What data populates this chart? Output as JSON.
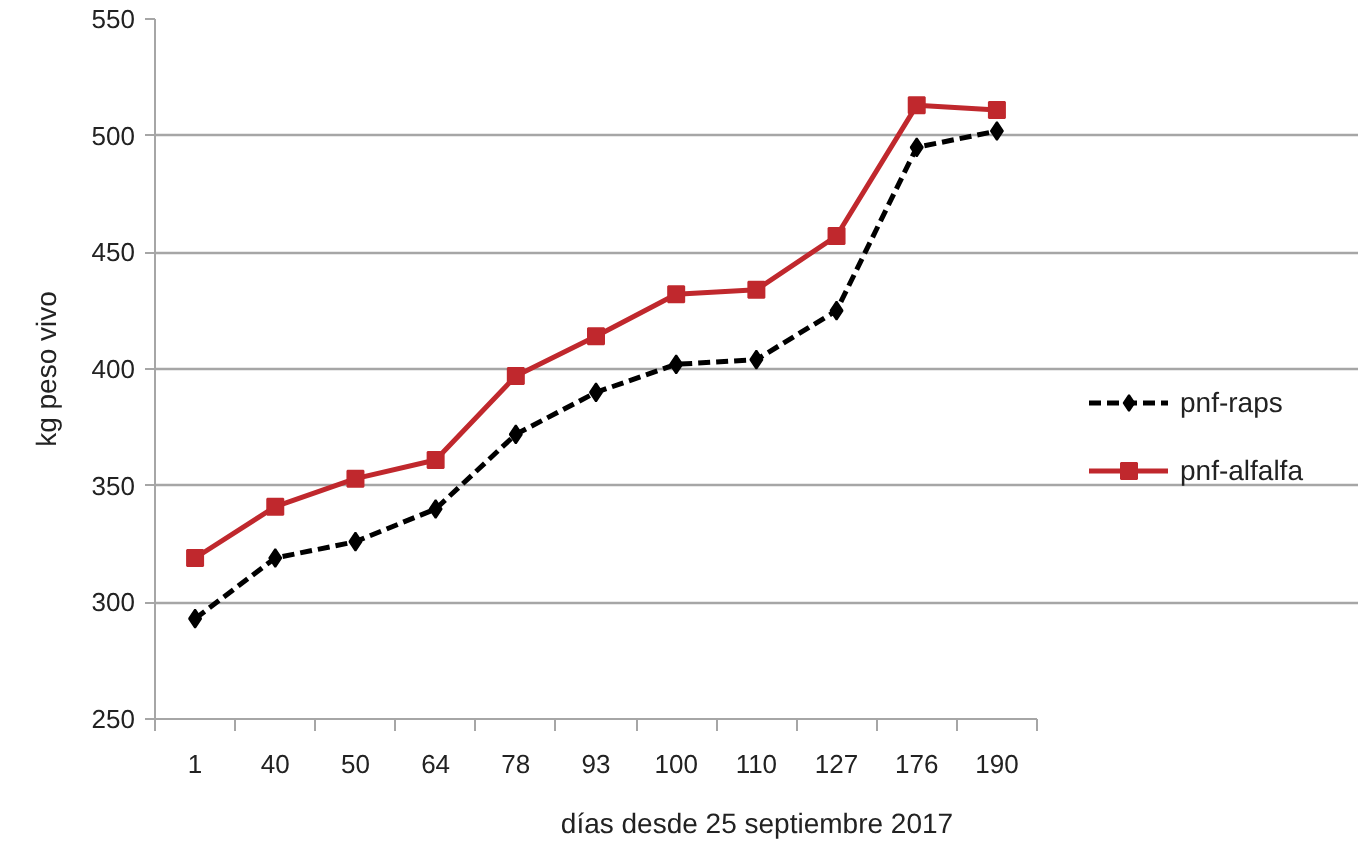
{
  "chart_data": {
    "type": "line",
    "xlabel": "días desde 25 septiembre 2017",
    "ylabel": "kg peso vivo",
    "categories": [
      "1",
      "40",
      "50",
      "64",
      "78",
      "93",
      "100",
      "110",
      "127",
      "176",
      "190"
    ],
    "series": [
      {
        "name": "pnf-raps",
        "color": "#000000",
        "line_style": "dashed",
        "marker": "diamond",
        "values": [
          293,
          319,
          326,
          340,
          372,
          390,
          402,
          404,
          425,
          495,
          502
        ]
      },
      {
        "name": "pnf-alfalfa",
        "color": "#c0282d",
        "line_style": "solid",
        "marker": "square",
        "values": [
          319,
          341,
          353,
          361,
          397,
          414,
          432,
          434,
          457,
          513,
          511
        ]
      }
    ],
    "ylim": [
      250,
      550
    ],
    "yticks": [
      250,
      300,
      350,
      400,
      450,
      500,
      550
    ],
    "grid": "y",
    "legend": "right"
  }
}
